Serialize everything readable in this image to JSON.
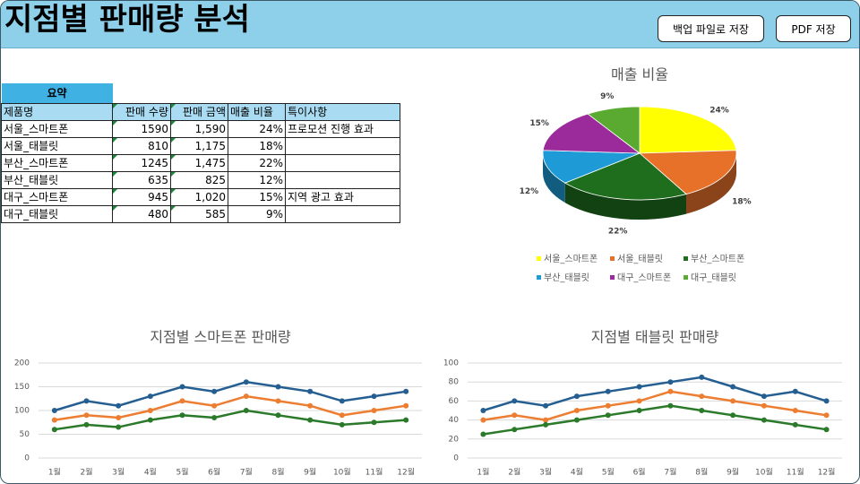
{
  "header": {
    "title": "지점별 판매량 분석",
    "buttons": [
      "백업 파일로 저장",
      "PDF 저장"
    ]
  },
  "table": {
    "title": "요약",
    "columns": [
      "제품명",
      "판매 수량",
      "판매 금액",
      "매출 비율",
      "특이사항"
    ],
    "rows": [
      [
        "서울_스마트폰",
        "1590",
        "1,590",
        "24%",
        "프로모션 진행 효과"
      ],
      [
        "서울_태블릿",
        "810",
        "1,175",
        "18%",
        ""
      ],
      [
        "부산_스마트폰",
        "1245",
        "1,475",
        "22%",
        ""
      ],
      [
        "부산_태블릿",
        "635",
        "825",
        "12%",
        ""
      ],
      [
        "대구_스마트폰",
        "945",
        "1,020",
        "15%",
        "지역 광고 효과"
      ],
      [
        "대구_태블릿",
        "480",
        "585",
        "9%",
        ""
      ]
    ]
  },
  "chart_data": [
    {
      "type": "pie",
      "title": "매출 비율",
      "categories": [
        "서울_스마트폰",
        "서울_태블릿",
        "부산_스마트폰",
        "부산_태블릿",
        "대구_스마트폰",
        "대구_태블릿"
      ],
      "values": [
        24,
        18,
        22,
        12,
        15,
        9
      ],
      "value_labels": [
        "24%",
        "18%",
        "22%",
        "12%",
        "15%",
        "9%"
      ],
      "colors": [
        "#ffff00",
        "#e8712a",
        "#1e6e1e",
        "#1e9ad6",
        "#9b2a9b",
        "#5aaa32"
      ],
      "legend": "bottom"
    },
    {
      "type": "line",
      "title": "지점별 스마트폰 판매량",
      "categories": [
        "1월",
        "2월",
        "3월",
        "4월",
        "5월",
        "6월",
        "7월",
        "8월",
        "9월",
        "10월",
        "11월",
        "12월"
      ],
      "series": [
        {
          "color": "#255e91",
          "values": [
            100,
            120,
            110,
            130,
            150,
            140,
            160,
            150,
            140,
            120,
            130,
            140
          ]
        },
        {
          "color": "#ed7d31",
          "values": [
            80,
            90,
            85,
            100,
            120,
            110,
            130,
            120,
            110,
            90,
            100,
            110
          ]
        },
        {
          "color": "#2a7a2a",
          "values": [
            60,
            70,
            65,
            80,
            90,
            85,
            100,
            90,
            80,
            70,
            75,
            80
          ]
        }
      ],
      "ylim": [
        0,
        200
      ],
      "yticks": [
        0,
        50,
        100,
        150,
        200
      ],
      "grid": true
    },
    {
      "type": "line",
      "title": "지점별 태블릿 판매량",
      "categories": [
        "1월",
        "2월",
        "3월",
        "4월",
        "5월",
        "6월",
        "7월",
        "8월",
        "9월",
        "10월",
        "11월",
        "12월"
      ],
      "series": [
        {
          "color": "#255e91",
          "values": [
            50,
            60,
            55,
            65,
            70,
            75,
            80,
            85,
            75,
            65,
            70,
            60
          ]
        },
        {
          "color": "#ed7d31",
          "values": [
            40,
            45,
            40,
            50,
            55,
            60,
            70,
            65,
            60,
            55,
            50,
            45
          ]
        },
        {
          "color": "#2a7a2a",
          "values": [
            25,
            30,
            35,
            40,
            45,
            50,
            55,
            50,
            45,
            40,
            35,
            30
          ]
        }
      ],
      "ylim": [
        0,
        100
      ],
      "yticks": [
        0,
        20,
        40,
        60,
        80,
        100
      ],
      "grid": true
    }
  ]
}
